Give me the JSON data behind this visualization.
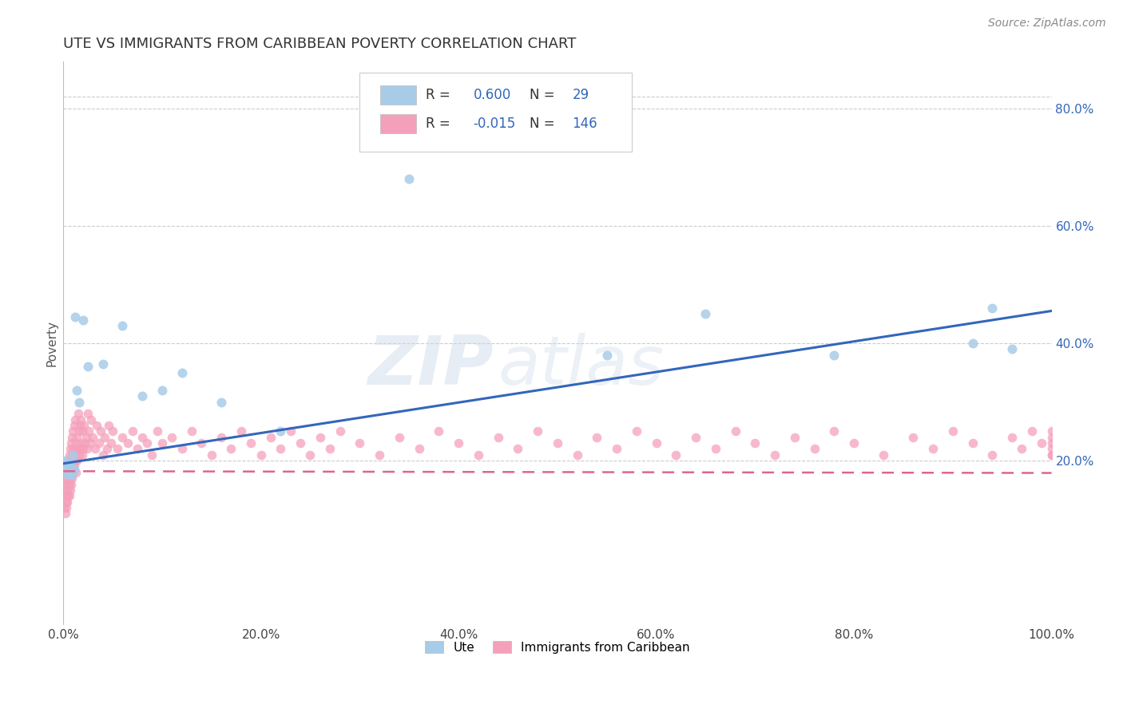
{
  "title": "UTE VS IMMIGRANTS FROM CARIBBEAN POVERTY CORRELATION CHART",
  "source": "Source: ZipAtlas.com",
  "ylabel": "Poverty",
  "xlim": [
    0.0,
    1.0
  ],
  "ylim": [
    -0.08,
    0.88
  ],
  "xticks": [
    0.0,
    0.2,
    0.4,
    0.6,
    0.8,
    1.0
  ],
  "xtick_labels": [
    "0.0%",
    "20.0%",
    "40.0%",
    "60.0%",
    "80.0%",
    "100.0%"
  ],
  "yticks_right": [
    0.2,
    0.4,
    0.6,
    0.8
  ],
  "ytick_labels_right": [
    "20.0%",
    "40.0%",
    "60.0%",
    "80.0%"
  ],
  "grid_color": "#cccccc",
  "background_color": "#ffffff",
  "watermark_text": "ZIP",
  "watermark_text2": "atlas",
  "series": [
    {
      "label": "Ute",
      "R": 0.6,
      "N": 29,
      "color": "#a8cce8",
      "edge_color": "none",
      "line_color": "#3366bb",
      "x": [
        0.001,
        0.003,
        0.004,
        0.005,
        0.006,
        0.007,
        0.008,
        0.009,
        0.01,
        0.011,
        0.012,
        0.014,
        0.016,
        0.02,
        0.025,
        0.04,
        0.06,
        0.08,
        0.1,
        0.12,
        0.16,
        0.22,
        0.35,
        0.55,
        0.65,
        0.78,
        0.92,
        0.94,
        0.96
      ],
      "y": [
        0.2,
        0.195,
        0.185,
        0.175,
        0.19,
        0.195,
        0.18,
        0.175,
        0.21,
        0.185,
        0.445,
        0.32,
        0.3,
        0.44,
        0.36,
        0.365,
        0.43,
        0.31,
        0.32,
        0.35,
        0.3,
        0.25,
        0.68,
        0.38,
        0.45,
        0.38,
        0.4,
        0.46,
        0.39
      ],
      "trend_x": [
        0.0,
        1.0
      ],
      "trend_y": [
        0.195,
        0.455
      ],
      "trend_dash": false
    },
    {
      "label": "Immigrants from Caribbean",
      "R": -0.015,
      "N": 146,
      "color": "#f5a0bb",
      "edge_color": "none",
      "line_color": "#dd6688",
      "x": [
        0.001,
        0.001,
        0.002,
        0.002,
        0.002,
        0.003,
        0.003,
        0.003,
        0.003,
        0.004,
        0.004,
        0.004,
        0.004,
        0.005,
        0.005,
        0.005,
        0.005,
        0.006,
        0.006,
        0.006,
        0.006,
        0.007,
        0.007,
        0.007,
        0.007,
        0.008,
        0.008,
        0.008,
        0.008,
        0.009,
        0.009,
        0.009,
        0.009,
        0.01,
        0.01,
        0.01,
        0.011,
        0.011,
        0.011,
        0.012,
        0.012,
        0.012,
        0.013,
        0.013,
        0.014,
        0.014,
        0.015,
        0.015,
        0.016,
        0.016,
        0.017,
        0.017,
        0.018,
        0.018,
        0.019,
        0.019,
        0.02,
        0.021,
        0.022,
        0.023,
        0.024,
        0.025,
        0.026,
        0.027,
        0.028,
        0.03,
        0.032,
        0.034,
        0.036,
        0.038,
        0.04,
        0.042,
        0.044,
        0.046,
        0.048,
        0.05,
        0.055,
        0.06,
        0.065,
        0.07,
        0.075,
        0.08,
        0.085,
        0.09,
        0.095,
        0.1,
        0.11,
        0.12,
        0.13,
        0.14,
        0.15,
        0.16,
        0.17,
        0.18,
        0.19,
        0.2,
        0.21,
        0.22,
        0.23,
        0.24,
        0.25,
        0.26,
        0.27,
        0.28,
        0.3,
        0.32,
        0.34,
        0.36,
        0.38,
        0.4,
        0.42,
        0.44,
        0.46,
        0.48,
        0.5,
        0.52,
        0.54,
        0.56,
        0.58,
        0.6,
        0.62,
        0.64,
        0.66,
        0.68,
        0.7,
        0.72,
        0.74,
        0.76,
        0.78,
        0.8,
        0.83,
        0.86,
        0.88,
        0.9,
        0.92,
        0.94,
        0.96,
        0.97,
        0.98,
        0.99,
        1.0,
        1.0,
        1.0,
        1.0,
        1.0,
        1.0
      ],
      "y": [
        0.12,
        0.16,
        0.14,
        0.11,
        0.18,
        0.15,
        0.12,
        0.17,
        0.13,
        0.16,
        0.13,
        0.19,
        0.14,
        0.17,
        0.14,
        0.2,
        0.15,
        0.18,
        0.14,
        0.21,
        0.16,
        0.19,
        0.15,
        0.22,
        0.17,
        0.2,
        0.16,
        0.23,
        0.18,
        0.21,
        0.17,
        0.24,
        0.19,
        0.22,
        0.18,
        0.25,
        0.19,
        0.21,
        0.26,
        0.22,
        0.2,
        0.27,
        0.23,
        0.18,
        0.24,
        0.2,
        0.28,
        0.22,
        0.25,
        0.21,
        0.26,
        0.22,
        0.27,
        0.23,
        0.25,
        0.21,
        0.22,
        0.26,
        0.23,
        0.24,
        0.22,
        0.28,
        0.25,
        0.23,
        0.27,
        0.24,
        0.22,
        0.26,
        0.23,
        0.25,
        0.21,
        0.24,
        0.22,
        0.26,
        0.23,
        0.25,
        0.22,
        0.24,
        0.23,
        0.25,
        0.22,
        0.24,
        0.23,
        0.21,
        0.25,
        0.23,
        0.24,
        0.22,
        0.25,
        0.23,
        0.21,
        0.24,
        0.22,
        0.25,
        0.23,
        0.21,
        0.24,
        0.22,
        0.25,
        0.23,
        0.21,
        0.24,
        0.22,
        0.25,
        0.23,
        0.21,
        0.24,
        0.22,
        0.25,
        0.23,
        0.21,
        0.24,
        0.22,
        0.25,
        0.23,
        0.21,
        0.24,
        0.22,
        0.25,
        0.23,
        0.21,
        0.24,
        0.22,
        0.25,
        0.23,
        0.21,
        0.24,
        0.22,
        0.25,
        0.23,
        0.21,
        0.24,
        0.22,
        0.25,
        0.23,
        0.21,
        0.24,
        0.22,
        0.25,
        0.23,
        0.21,
        0.24,
        0.22,
        0.25,
        0.23,
        0.21
      ],
      "trend_x": [
        0.0,
        1.0
      ],
      "trend_y": [
        0.182,
        0.179
      ],
      "trend_dash": true
    }
  ],
  "title_fontsize": 13,
  "tick_fontsize": 11,
  "axis_label_fontsize": 11,
  "source_fontsize": 10,
  "legend_color": "#3366bb"
}
